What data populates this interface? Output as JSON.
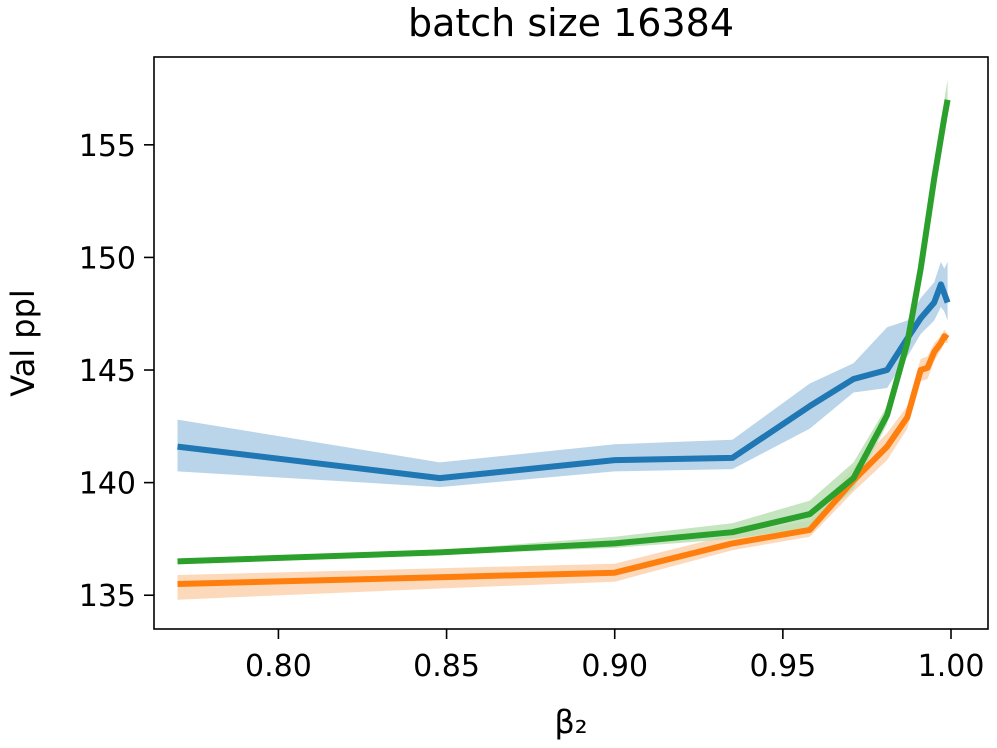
{
  "chart_data": {
    "type": "line",
    "title": "batch size 16384",
    "xlabel": "β₂",
    "ylabel": "Val ppl",
    "xlim": [
      0.763,
      1.011
    ],
    "ylim": [
      133.5,
      158.9
    ],
    "xticks": [
      0.8,
      0.85,
      0.9,
      0.95,
      1.0
    ],
    "xtick_labels": [
      "0.80",
      "0.85",
      "0.90",
      "0.95",
      "1.00"
    ],
    "yticks": [
      135,
      140,
      145,
      150,
      155
    ],
    "ytick_labels": [
      "135",
      "140",
      "145",
      "150",
      "155"
    ],
    "grid": false,
    "series": [
      {
        "color": "#1f77b4",
        "fill_color": "#a9c9e4",
        "x": [
          0.77,
          0.848,
          0.9,
          0.935,
          0.958,
          0.971,
          0.981,
          0.987,
          0.991,
          0.995,
          0.997,
          0.998,
          0.999
        ],
        "y": [
          141.6,
          140.2,
          141.0,
          141.1,
          143.4,
          144.6,
          145.0,
          146.4,
          147.3,
          148.0,
          148.8,
          148.4,
          148.0
        ],
        "lower": [
          140.5,
          139.8,
          140.5,
          140.6,
          142.4,
          144.0,
          144.2,
          145.6,
          146.6,
          147.2,
          147.8,
          147.6,
          147.2
        ],
        "upper": [
          142.8,
          140.9,
          141.7,
          141.9,
          144.4,
          145.3,
          146.9,
          147.2,
          148.2,
          148.9,
          149.8,
          149.5,
          149.8
        ]
      },
      {
        "color": "#ff7f0e",
        "fill_color": "#fdd0aa",
        "x": [
          0.77,
          0.848,
          0.9,
          0.935,
          0.958,
          0.971,
          0.981,
          0.987,
          0.991,
          0.993,
          0.995,
          0.997,
          0.998,
          0.999
        ],
        "y": [
          135.5,
          135.8,
          136.0,
          137.3,
          137.9,
          140.1,
          141.6,
          142.9,
          145.0,
          145.1,
          145.8,
          146.2,
          146.5,
          146.4
        ],
        "lower": [
          134.8,
          135.3,
          135.6,
          137.0,
          137.6,
          139.6,
          141.0,
          142.4,
          144.5,
          144.6,
          145.4,
          145.9,
          146.2,
          146.2
        ],
        "upper": [
          135.9,
          136.2,
          136.4,
          137.7,
          138.3,
          140.7,
          142.2,
          143.4,
          145.5,
          145.6,
          146.2,
          146.5,
          146.8,
          146.6
        ]
      },
      {
        "color": "#2ca02c",
        "fill_color": "#b7dfb0",
        "x": [
          0.77,
          0.848,
          0.9,
          0.935,
          0.958,
          0.971,
          0.981,
          0.987,
          0.991,
          0.995,
          0.998,
          0.999
        ],
        "y": [
          136.5,
          136.9,
          137.3,
          137.8,
          138.6,
          140.2,
          143.0,
          146.2,
          149.5,
          153.5,
          156.2,
          157.0
        ],
        "lower": [
          136.4,
          136.8,
          137.1,
          137.5,
          138.0,
          139.7,
          142.6,
          145.8,
          149.0,
          153.0,
          155.6,
          156.4
        ],
        "upper": [
          136.6,
          137.0,
          137.6,
          138.2,
          139.2,
          140.9,
          143.4,
          146.6,
          149.9,
          154.0,
          157.0,
          157.9
        ]
      }
    ]
  }
}
